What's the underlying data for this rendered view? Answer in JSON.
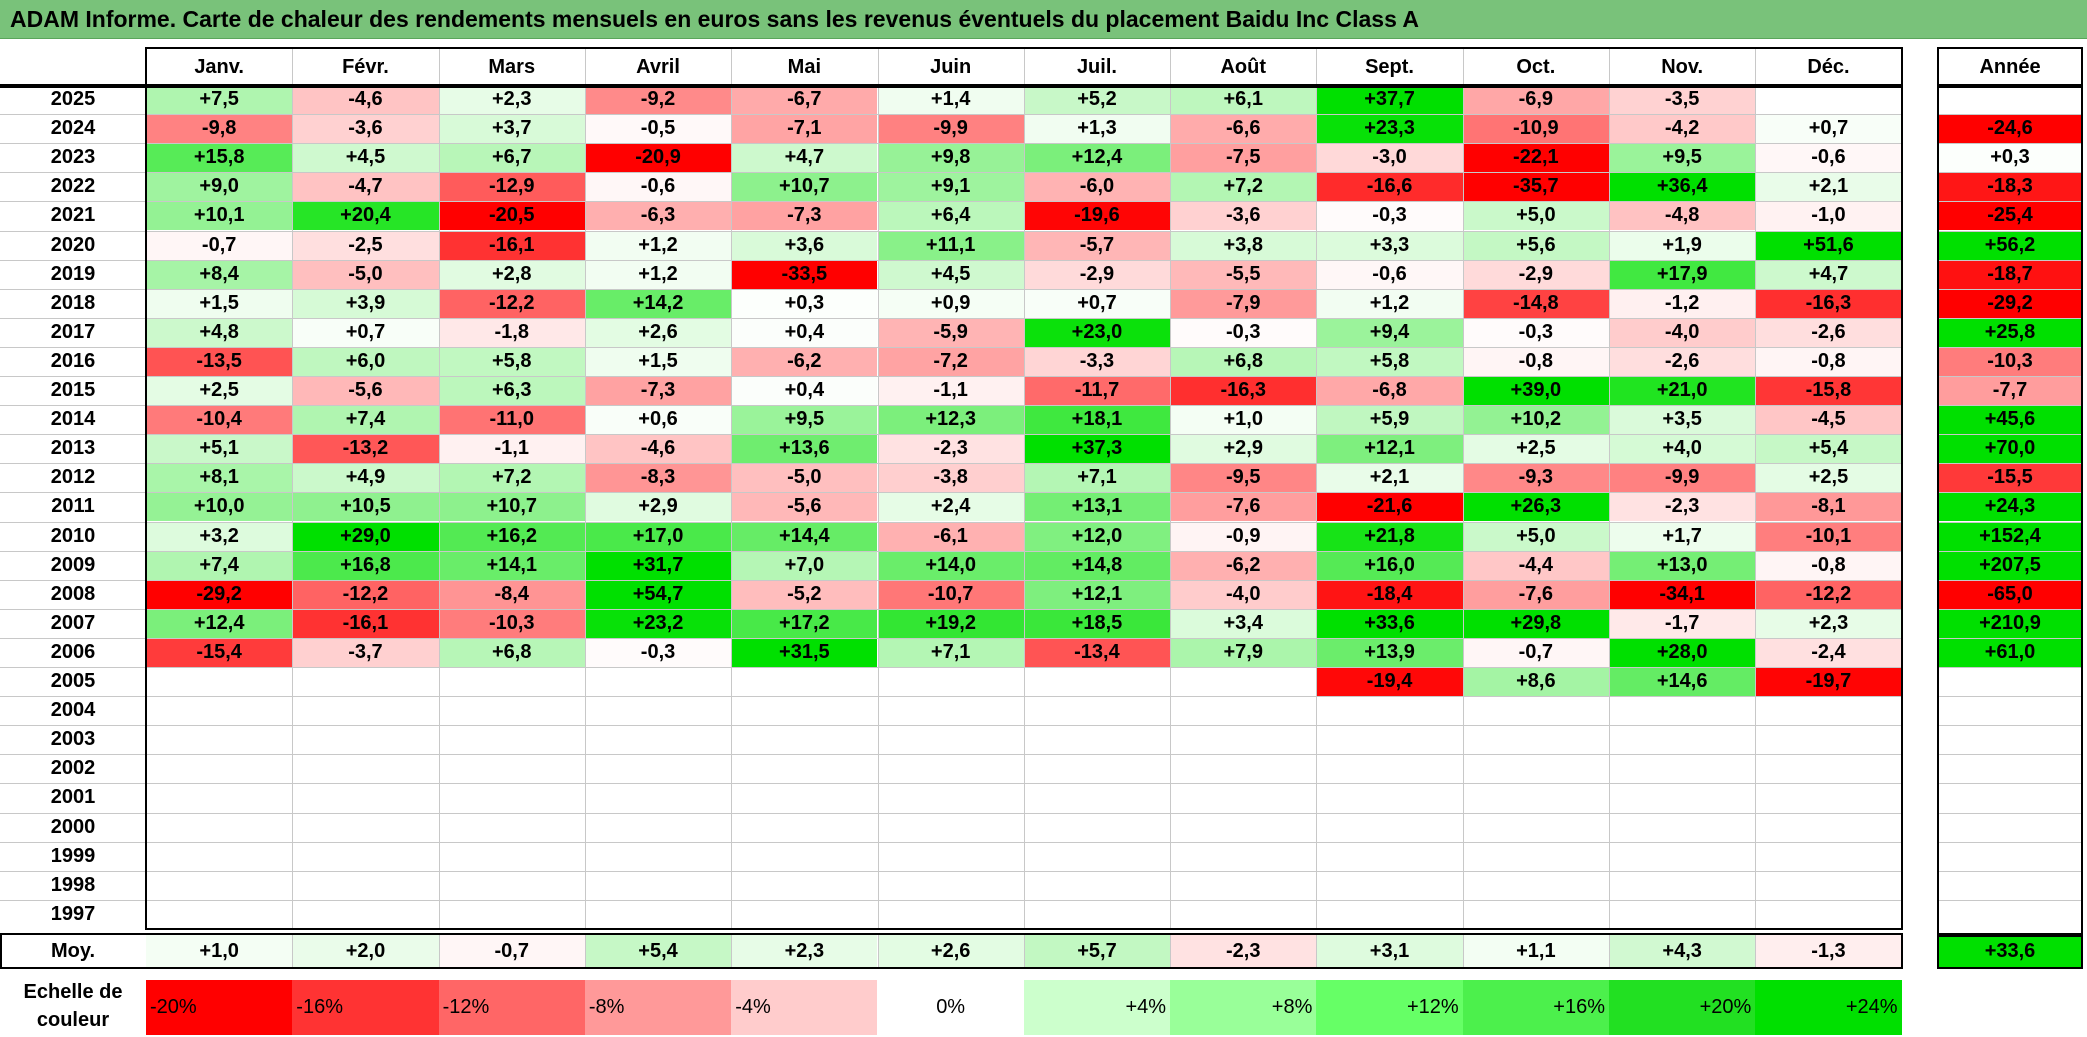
{
  "title": "ADAM Informe. Carte de chaleur des rendements mensuels en euros sans les revenus éventuels du placement Baidu Inc Class A",
  "chart_data": {
    "type": "heatmap",
    "title": "ADAM Informe. Carte de chaleur des rendements mensuels en euros sans les revenus éventuels du placement Baidu Inc Class A",
    "columns": [
      "Janv.",
      "Févr.",
      "Mars",
      "Avril",
      "Mai",
      "Juin",
      "Juil.",
      "Août",
      "Sept.",
      "Oct.",
      "Nov.",
      "Déc."
    ],
    "year_column_label": "Année",
    "average_row_label": "Moy.",
    "rows": [
      {
        "year": "2025",
        "values": [
          "+7,5",
          "-4,6",
          "+2,3",
          "-9,2",
          "-6,7",
          "+1,4",
          "+5,2",
          "+6,1",
          "+37,7",
          "-6,9",
          "-3,5",
          ""
        ],
        "annual": ""
      },
      {
        "year": "2024",
        "values": [
          "-9,8",
          "-3,6",
          "+3,7",
          "-0,5",
          "-7,1",
          "-9,9",
          "+1,3",
          "-6,6",
          "+23,3",
          "-10,9",
          "-4,2",
          "+0,7"
        ],
        "annual": "-24,6"
      },
      {
        "year": "2023",
        "values": [
          "+15,8",
          "+4,5",
          "+6,7",
          "-20,9",
          "+4,7",
          "+9,8",
          "+12,4",
          "-7,5",
          "-3,0",
          "-22,1",
          "+9,5",
          "-0,6"
        ],
        "annual": "+0,3"
      },
      {
        "year": "2022",
        "values": [
          "+9,0",
          "-4,7",
          "-12,9",
          "-0,6",
          "+10,7",
          "+9,1",
          "-6,0",
          "+7,2",
          "-16,6",
          "-35,7",
          "+36,4",
          "+2,1"
        ],
        "annual": "-18,3"
      },
      {
        "year": "2021",
        "values": [
          "+10,1",
          "+20,4",
          "-20,5",
          "-6,3",
          "-7,3",
          "+6,4",
          "-19,6",
          "-3,6",
          "-0,3",
          "+5,0",
          "-4,8",
          "-1,0"
        ],
        "annual": "-25,4"
      },
      {
        "year": "2020",
        "values": [
          "-0,7",
          "-2,5",
          "-16,1",
          "+1,2",
          "+3,6",
          "+11,1",
          "-5,7",
          "+3,8",
          "+3,3",
          "+5,6",
          "+1,9",
          "+51,6"
        ],
        "annual": "+56,2"
      },
      {
        "year": "2019",
        "values": [
          "+8,4",
          "-5,0",
          "+2,8",
          "+1,2",
          "-33,5",
          "+4,5",
          "-2,9",
          "-5,5",
          "-0,6",
          "-2,9",
          "+17,9",
          "+4,7"
        ],
        "annual": "-18,7"
      },
      {
        "year": "2018",
        "values": [
          "+1,5",
          "+3,9",
          "-12,2",
          "+14,2",
          "+0,3",
          "+0,9",
          "+0,7",
          "-7,9",
          "+1,2",
          "-14,8",
          "-1,2",
          "-16,3"
        ],
        "annual": "-29,2"
      },
      {
        "year": "2017",
        "values": [
          "+4,8",
          "+0,7",
          "-1,8",
          "+2,6",
          "+0,4",
          "-5,9",
          "+23,0",
          "-0,3",
          "+9,4",
          "-0,3",
          "-4,0",
          "-2,6"
        ],
        "annual": "+25,8"
      },
      {
        "year": "2016",
        "values": [
          "-13,5",
          "+6,0",
          "+5,8",
          "+1,5",
          "-6,2",
          "-7,2",
          "-3,3",
          "+6,8",
          "+5,8",
          "-0,8",
          "-2,6",
          "-0,8"
        ],
        "annual": "-10,3"
      },
      {
        "year": "2015",
        "values": [
          "+2,5",
          "-5,6",
          "+6,3",
          "-7,3",
          "+0,4",
          "-1,1",
          "-11,7",
          "-16,3",
          "-6,8",
          "+39,0",
          "+21,0",
          "-15,8"
        ],
        "annual": "-7,7"
      },
      {
        "year": "2014",
        "values": [
          "-10,4",
          "+7,4",
          "-11,0",
          "+0,6",
          "+9,5",
          "+12,3",
          "+18,1",
          "+1,0",
          "+5,9",
          "+10,2",
          "+3,5",
          "-4,5"
        ],
        "annual": "+45,6"
      },
      {
        "year": "2013",
        "values": [
          "+5,1",
          "-13,2",
          "-1,1",
          "-4,6",
          "+13,6",
          "-2,3",
          "+37,3",
          "+2,9",
          "+12,1",
          "+2,5",
          "+4,0",
          "+5,4"
        ],
        "annual": "+70,0"
      },
      {
        "year": "2012",
        "values": [
          "+8,1",
          "+4,9",
          "+7,2",
          "-8,3",
          "-5,0",
          "-3,8",
          "+7,1",
          "-9,5",
          "+2,1",
          "-9,3",
          "-9,9",
          "+2,5"
        ],
        "annual": "-15,5"
      },
      {
        "year": "2011",
        "values": [
          "+10,0",
          "+10,5",
          "+10,7",
          "+2,9",
          "-5,6",
          "+2,4",
          "+13,1",
          "-7,6",
          "-21,6",
          "+26,3",
          "-2,3",
          "-8,1"
        ],
        "annual": "+24,3"
      },
      {
        "year": "2010",
        "values": [
          "+3,2",
          "+29,0",
          "+16,2",
          "+17,0",
          "+14,4",
          "-6,1",
          "+12,0",
          "-0,9",
          "+21,8",
          "+5,0",
          "+1,7",
          "-10,1"
        ],
        "annual": "+152,4"
      },
      {
        "year": "2009",
        "values": [
          "+7,4",
          "+16,8",
          "+14,1",
          "+31,7",
          "+7,0",
          "+14,0",
          "+14,8",
          "-6,2",
          "+16,0",
          "-4,4",
          "+13,0",
          "-0,8"
        ],
        "annual": "+207,5"
      },
      {
        "year": "2008",
        "values": [
          "-29,2",
          "-12,2",
          "-8,4",
          "+54,7",
          "-5,2",
          "-10,7",
          "+12,1",
          "-4,0",
          "-18,4",
          "-7,6",
          "-34,1",
          "-12,2"
        ],
        "annual": "-65,0"
      },
      {
        "year": "2007",
        "values": [
          "+12,4",
          "-16,1",
          "-10,3",
          "+23,2",
          "+17,2",
          "+19,2",
          "+18,5",
          "+3,4",
          "+33,6",
          "+29,8",
          "-1,7",
          "+2,3"
        ],
        "annual": "+210,9"
      },
      {
        "year": "2006",
        "values": [
          "-15,4",
          "-3,7",
          "+6,8",
          "-0,3",
          "+31,5",
          "+7,1",
          "-13,4",
          "+7,9",
          "+13,9",
          "-0,7",
          "+28,0",
          "-2,4"
        ],
        "annual": "+61,0"
      },
      {
        "year": "2005",
        "values": [
          "",
          "",
          "",
          "",
          "",
          "",
          "",
          "",
          "-19,4",
          "+8,6",
          "+14,6",
          "-19,7"
        ],
        "annual": ""
      },
      {
        "year": "2004",
        "values": [
          "",
          "",
          "",
          "",
          "",
          "",
          "",
          "",
          "",
          "",
          "",
          ""
        ],
        "annual": ""
      },
      {
        "year": "2003",
        "values": [
          "",
          "",
          "",
          "",
          "",
          "",
          "",
          "",
          "",
          "",
          "",
          ""
        ],
        "annual": ""
      },
      {
        "year": "2002",
        "values": [
          "",
          "",
          "",
          "",
          "",
          "",
          "",
          "",
          "",
          "",
          "",
          ""
        ],
        "annual": ""
      },
      {
        "year": "2001",
        "values": [
          "",
          "",
          "",
          "",
          "",
          "",
          "",
          "",
          "",
          "",
          "",
          ""
        ],
        "annual": ""
      },
      {
        "year": "2000",
        "values": [
          "",
          "",
          "",
          "",
          "",
          "",
          "",
          "",
          "",
          "",
          "",
          ""
        ],
        "annual": ""
      },
      {
        "year": "1999",
        "values": [
          "",
          "",
          "",
          "",
          "",
          "",
          "",
          "",
          "",
          "",
          "",
          ""
        ],
        "annual": ""
      },
      {
        "year": "1998",
        "values": [
          "",
          "",
          "",
          "",
          "",
          "",
          "",
          "",
          "",
          "",
          "",
          ""
        ],
        "annual": ""
      },
      {
        "year": "1997",
        "values": [
          "",
          "",
          "",
          "",
          "",
          "",
          "",
          "",
          "",
          "",
          "",
          ""
        ],
        "annual": ""
      }
    ],
    "averages": [
      "+1,0",
      "+2,0",
      "-0,7",
      "+5,4",
      "+2,3",
      "+2,6",
      "+5,7",
      "-2,3",
      "+3,1",
      "+1,1",
      "+4,3",
      "-1,3"
    ],
    "average_annual": "+33,6",
    "color_scale": {
      "label": "Echelle de couleur",
      "stops": [
        {
          "label": "-20%",
          "value": -20,
          "color": "#ff0000"
        },
        {
          "label": "-16%",
          "value": -16,
          "color": "#ff3333"
        },
        {
          "label": "-12%",
          "value": -12,
          "color": "#ff6666"
        },
        {
          "label": "-8%",
          "value": -8,
          "color": "#ff9999"
        },
        {
          "label": "-4%",
          "value": -4,
          "color": "#ffcccc"
        },
        {
          "label": "0%",
          "value": 0,
          "color": "#ffffff"
        },
        {
          "label": "+4%",
          "value": 4,
          "color": "#ccffcc"
        },
        {
          "label": "+8%",
          "value": 8,
          "color": "#99ff99"
        },
        {
          "label": "+12%",
          "value": 12,
          "color": "#66ff66"
        },
        {
          "label": "+16%",
          "value": 16,
          "color": "#4cf04c"
        },
        {
          "label": "+20%",
          "value": 20,
          "color": "#22e022"
        },
        {
          "label": "+24%",
          "value": 24,
          "color": "#00e000"
        }
      ]
    }
  }
}
